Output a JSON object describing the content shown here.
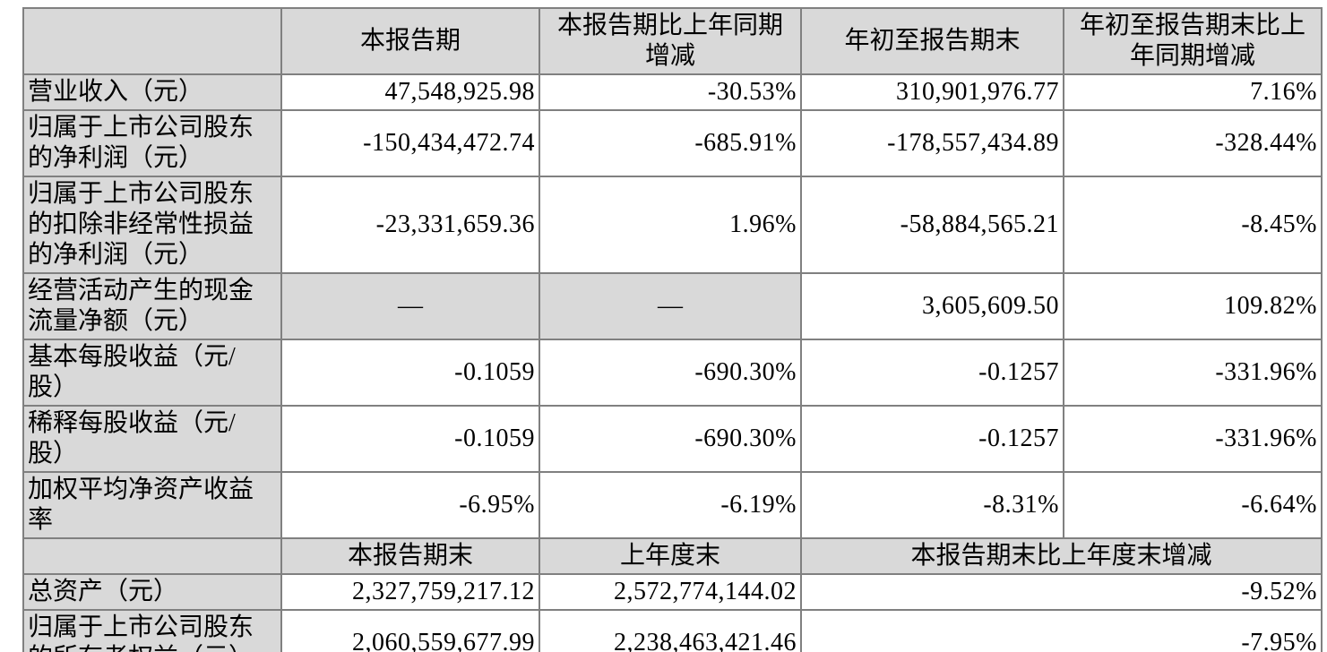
{
  "colors": {
    "header_bg": "#d9d9d9",
    "border": "#808080",
    "text": "#000000",
    "page_bg": "#ffffff"
  },
  "table": {
    "columns": {
      "c1": "",
      "c2": "本报告期",
      "c3": [
        "本报告期比上年同期",
        "增减"
      ],
      "c4": "年初至报告期末",
      "c5": [
        "年初至报告期末比上",
        "年同期增减"
      ]
    },
    "rows": [
      {
        "label": "营业收入（元）",
        "current_period": "47,548,925.98",
        "yoy_change": "-30.53%",
        "ytd": "310,901,976.77",
        "ytd_yoy_change": "7.16%"
      },
      {
        "label": [
          "归属于上市公司股东",
          "的净利润（元）"
        ],
        "current_period": "-150,434,472.74",
        "yoy_change": "-685.91%",
        "ytd": "-178,557,434.89",
        "ytd_yoy_change": "-328.44%"
      },
      {
        "label": [
          "归属于上市公司股东",
          "的扣除非经常性损益",
          "的净利润（元）"
        ],
        "current_period": "-23,331,659.36",
        "yoy_change": "1.96%",
        "ytd": "-58,884,565.21",
        "ytd_yoy_change": "-8.45%"
      },
      {
        "label": [
          "经营活动产生的现金",
          "流量净额（元）"
        ],
        "current_period": "—",
        "yoy_change": "—",
        "ytd": "3,605,609.50",
        "ytd_yoy_change": "109.82%"
      },
      {
        "label": [
          "基本每股收益（元/",
          "股）"
        ],
        "current_period": "-0.1059",
        "yoy_change": "-690.30%",
        "ytd": "-0.1257",
        "ytd_yoy_change": "-331.96%"
      },
      {
        "label": [
          "稀释每股收益（元/",
          "股）"
        ],
        "current_period": "-0.1059",
        "yoy_change": "-690.30%",
        "ytd": "-0.1257",
        "ytd_yoy_change": "-331.96%"
      },
      {
        "label": [
          "加权平均净资产收益",
          "率"
        ],
        "current_period": "-6.95%",
        "yoy_change": "-6.19%",
        "ytd": "-8.31%",
        "ytd_yoy_change": "-6.64%"
      }
    ],
    "secondary_header": {
      "c1": "",
      "c2": "本报告期末",
      "c3": "上年度末",
      "c45": "本报告期末比上年度末增减"
    },
    "balance_rows": [
      {
        "label": "总资产（元）",
        "end_of_period": "2,327,759,217.12",
        "end_of_prior_year": "2,572,774,144.02",
        "change": "-9.52%"
      },
      {
        "label": [
          "归属于上市公司股东",
          "的所有者权益（元）"
        ],
        "end_of_period": "2,060,559,677.99",
        "end_of_prior_year": "2,238,463,421.46",
        "change": "-7.95%"
      }
    ]
  }
}
